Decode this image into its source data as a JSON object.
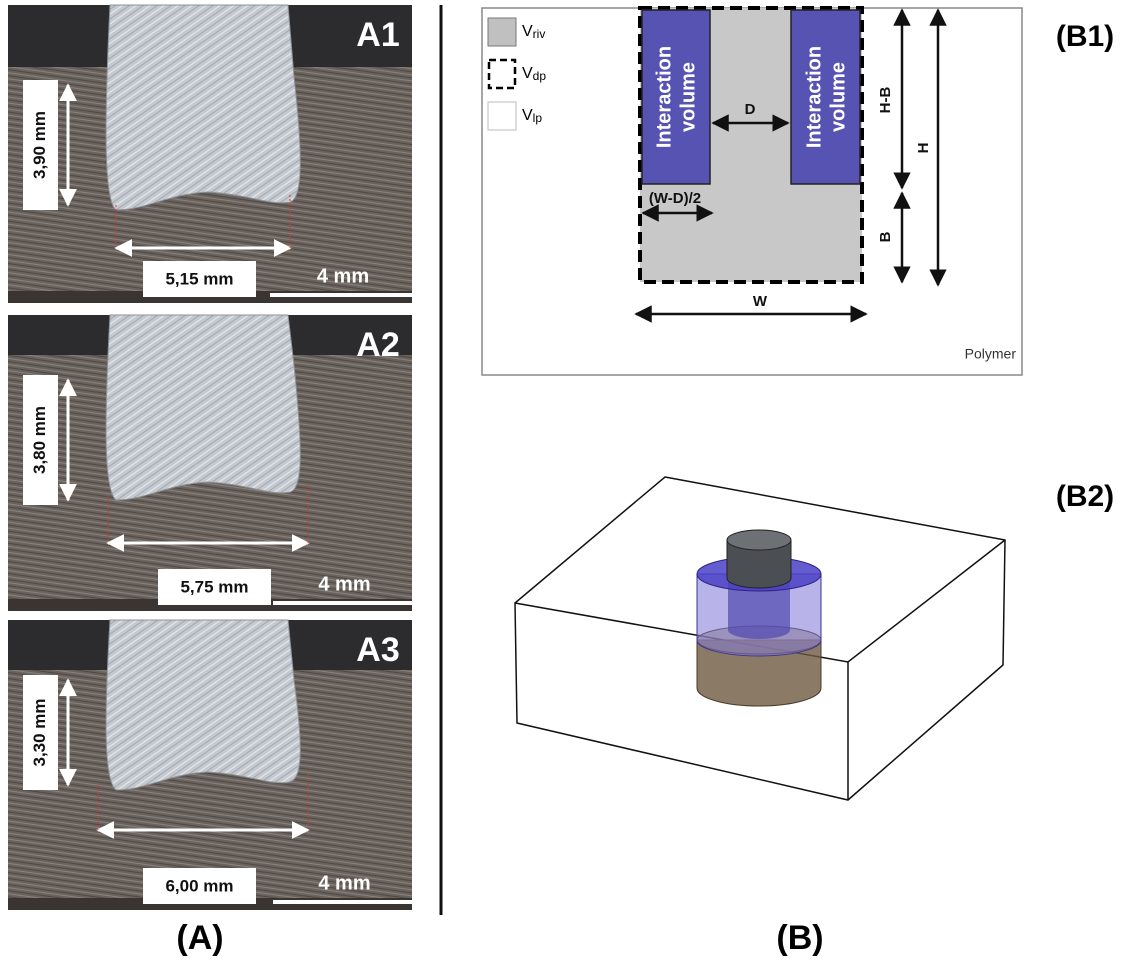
{
  "panel_a": {
    "caption": "(A)",
    "images": [
      {
        "label": "A1",
        "height_label": "3,90 mm",
        "width_label": "5,15 mm",
        "scale_label": "4 mm"
      },
      {
        "label": "A2",
        "height_label": "3,80 mm",
        "width_label": "5,75 mm",
        "scale_label": "4 mm"
      },
      {
        "label": "A3",
        "height_label": "3,30 mm",
        "width_label": "6,00 mm",
        "scale_label": "4 mm"
      }
    ]
  },
  "panel_b": {
    "caption": "(B)",
    "b1": {
      "label": "(B1)",
      "legend": [
        {
          "symbol": "V",
          "subscript": "riv"
        },
        {
          "symbol": "V",
          "subscript": "dp"
        },
        {
          "symbol": "V",
          "subscript": "lp"
        }
      ],
      "blocks": [
        {
          "lines": [
            "Interaction",
            "volume"
          ]
        },
        {
          "lines": [
            "Interaction",
            "volume"
          ]
        }
      ],
      "dimensions": {
        "d": "D",
        "half_gap": "(W-D)/2",
        "w": "W",
        "h_minus_b": "H-B",
        "h": "H",
        "b": "B"
      },
      "material": "Polymer"
    },
    "b2": {
      "label": "(B2)"
    }
  }
}
